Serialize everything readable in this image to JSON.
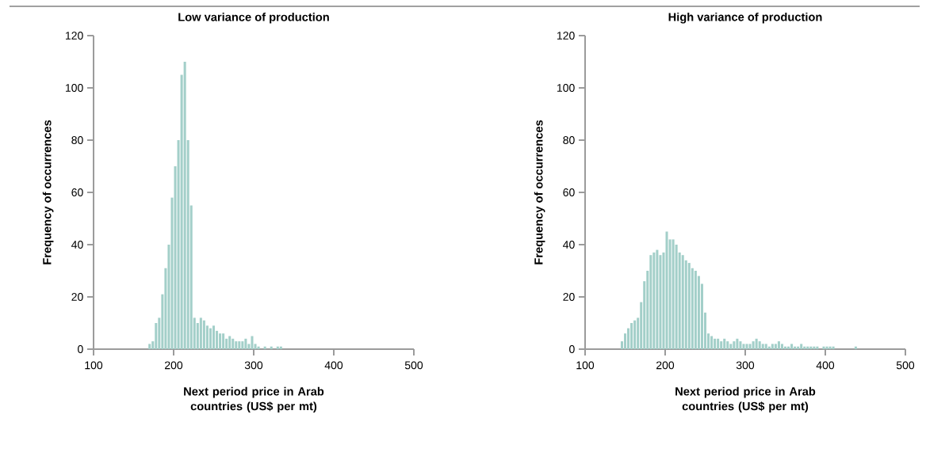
{
  "chart_data": [
    {
      "type": "histogram",
      "title": "Low variance of production",
      "xlabel": "Next period price in Arab countries (US$ per mt)",
      "ylabel": "Frequency of occurrences",
      "color": "#a3cfc9",
      "xlim": [
        100,
        500
      ],
      "ylim": [
        0,
        120
      ],
      "xticks": [
        100,
        200,
        300,
        400,
        500
      ],
      "yticks": [
        0,
        20,
        40,
        60,
        80,
        100,
        120
      ],
      "bins": [
        168,
        172,
        176,
        180,
        184,
        188,
        192,
        196,
        200,
        204,
        208,
        212,
        216,
        220,
        224,
        228,
        232,
        236,
        240,
        244,
        248,
        252,
        256,
        260,
        264,
        268,
        272,
        276,
        280,
        284,
        288,
        292,
        296,
        300,
        304,
        308,
        312,
        316,
        320,
        324,
        328,
        332,
        336
      ],
      "values": [
        2,
        3,
        10,
        12,
        21,
        31,
        40,
        58,
        70,
        80,
        105,
        110,
        80,
        55,
        12,
        10,
        12,
        11,
        9,
        8,
        9,
        7,
        6,
        6,
        4,
        5,
        4,
        3,
        3,
        3,
        4,
        2,
        5,
        2,
        1,
        0,
        1,
        0,
        1,
        0,
        1,
        1
      ]
    },
    {
      "type": "histogram",
      "title": "High variance of production",
      "xlabel": "Next period price in Arab countries (US$ per mt)",
      "ylabel": "Frequency of occurrences",
      "color": "#a3cfc9",
      "xlim": [
        100,
        500
      ],
      "ylim": [
        0,
        120
      ],
      "xticks": [
        100,
        200,
        300,
        400,
        500
      ],
      "yticks": [
        0,
        20,
        40,
        60,
        80,
        100,
        120
      ],
      "bins": [
        144,
        148,
        152,
        156,
        160,
        164,
        168,
        172,
        176,
        180,
        184,
        188,
        192,
        196,
        200,
        204,
        208,
        212,
        216,
        220,
        224,
        228,
        232,
        236,
        240,
        244,
        248,
        252,
        256,
        260,
        264,
        268,
        272,
        276,
        280,
        284,
        288,
        292,
        296,
        300,
        304,
        308,
        312,
        316,
        320,
        324,
        328,
        332,
        336,
        340,
        344,
        348,
        352,
        356,
        360,
        364,
        368,
        372,
        376,
        380,
        384,
        388,
        392,
        396,
        400,
        404,
        408,
        412,
        416,
        420,
        424,
        428,
        432,
        436,
        440
      ],
      "values": [
        3,
        6,
        8,
        10,
        11,
        12,
        18,
        26,
        30,
        36,
        37,
        38,
        36,
        37,
        45,
        42,
        42,
        40,
        37,
        36,
        34,
        33,
        31,
        30,
        28,
        25,
        14,
        6,
        5,
        4,
        4,
        3,
        4,
        3,
        2,
        3,
        4,
        3,
        2,
        2,
        2,
        3,
        4,
        3,
        2,
        2,
        1,
        2,
        2,
        3,
        2,
        1,
        1,
        2,
        1,
        1,
        2,
        1,
        1,
        1,
        1,
        1,
        0,
        1,
        1,
        1,
        1,
        0,
        0,
        0,
        0,
        0,
        0,
        1
      ]
    }
  ]
}
